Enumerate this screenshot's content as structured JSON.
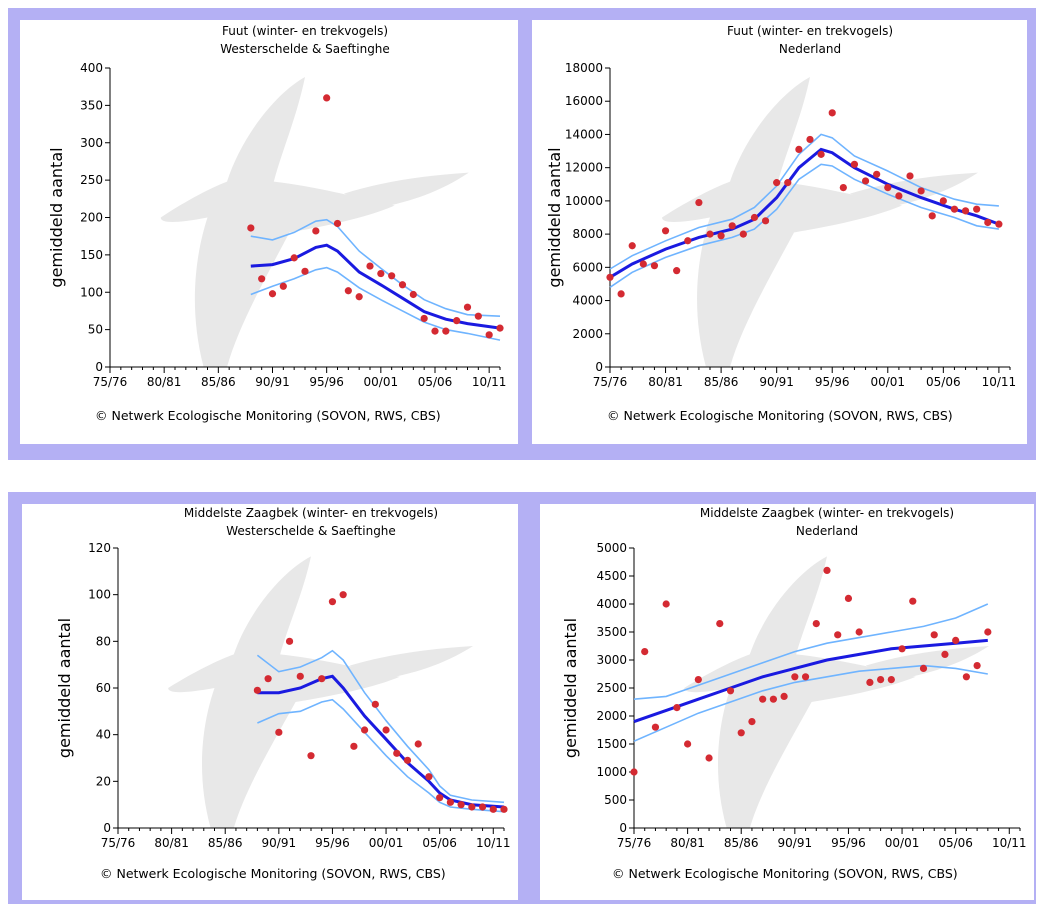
{
  "credit": "© Netwerk Ecologische Monitoring (SOVON, RWS, CBS)",
  "colors": {
    "band": "#b4b0f4",
    "trend": "#1a1ae0",
    "band_line": "#6fb4ff",
    "points": "#d42a32",
    "silhouette": "#e8e8e8"
  },
  "icons": [
    "bird-silhouette-icon"
  ],
  "chart_data": [
    {
      "type": "scatter",
      "title": "Fuut (winter- en trekvogels)",
      "subtitle": "Westerschelde & Saeftinghe",
      "ylabel": "gemiddeld aantal",
      "xlabel": "",
      "x_ticks": [
        "75/76",
        "80/81",
        "85/86",
        "90/91",
        "95/96",
        "00/01",
        "05/06",
        "10/11"
      ],
      "xlim": [
        1975,
        2011
      ],
      "ylim": [
        0,
        400
      ],
      "y_ticks": [
        "0",
        "50",
        "100",
        "150",
        "200",
        "250",
        "300",
        "350",
        "400"
      ],
      "points": [
        [
          1988,
          186
        ],
        [
          1989,
          118
        ],
        [
          1990,
          98
        ],
        [
          1991,
          108
        ],
        [
          1992,
          146
        ],
        [
          1993,
          128
        ],
        [
          1994,
          182
        ],
        [
          1995,
          360
        ],
        [
          1996,
          192
        ],
        [
          1997,
          102
        ],
        [
          1998,
          94
        ],
        [
          1999,
          135
        ],
        [
          2000,
          125
        ],
        [
          2001,
          122
        ],
        [
          2002,
          110
        ],
        [
          2003,
          97
        ],
        [
          2004,
          65
        ],
        [
          2005,
          48
        ],
        [
          2006,
          48
        ],
        [
          2007,
          62
        ],
        [
          2008,
          80
        ],
        [
          2009,
          68
        ],
        [
          2010,
          43
        ],
        [
          2011,
          52
        ]
      ],
      "trend": [
        [
          1988,
          135
        ],
        [
          1990,
          137
        ],
        [
          1992,
          145
        ],
        [
          1994,
          160
        ],
        [
          1995,
          163
        ],
        [
          1996,
          155
        ],
        [
          1998,
          127
        ],
        [
          2000,
          110
        ],
        [
          2002,
          92
        ],
        [
          2004,
          74
        ],
        [
          2006,
          64
        ],
        [
          2008,
          58
        ],
        [
          2011,
          52
        ]
      ],
      "upper": [
        [
          1988,
          175
        ],
        [
          1990,
          170
        ],
        [
          1992,
          180
        ],
        [
          1994,
          195
        ],
        [
          1995,
          197
        ],
        [
          1996,
          188
        ],
        [
          1998,
          155
        ],
        [
          2000,
          132
        ],
        [
          2002,
          110
        ],
        [
          2004,
          90
        ],
        [
          2006,
          78
        ],
        [
          2008,
          70
        ],
        [
          2011,
          68
        ]
      ],
      "lower": [
        [
          1988,
          97
        ],
        [
          1990,
          108
        ],
        [
          1992,
          118
        ],
        [
          1994,
          130
        ],
        [
          1995,
          133
        ],
        [
          1996,
          127
        ],
        [
          1998,
          106
        ],
        [
          2000,
          90
        ],
        [
          2002,
          75
        ],
        [
          2004,
          60
        ],
        [
          2006,
          50
        ],
        [
          2008,
          45
        ],
        [
          2011,
          36
        ]
      ]
    },
    {
      "type": "scatter",
      "title": "Fuut (winter- en trekvogels)",
      "subtitle": "Nederland",
      "ylabel": "gemiddeld aantal",
      "xlabel": "",
      "x_ticks": [
        "75/76",
        "80/81",
        "85/86",
        "90/91",
        "95/96",
        "00/01",
        "05/06",
        "10/11"
      ],
      "xlim": [
        1975,
        2011
      ],
      "ylim": [
        0,
        18000
      ],
      "y_ticks": [
        "0",
        "2000",
        "4000",
        "6000",
        "8000",
        "10000",
        "12000",
        "14000",
        "16000",
        "18000"
      ],
      "points": [
        [
          1975,
          5400
        ],
        [
          1976,
          4400
        ],
        [
          1977,
          7300
        ],
        [
          1978,
          6200
        ],
        [
          1979,
          6100
        ],
        [
          1980,
          8200
        ],
        [
          1981,
          5800
        ],
        [
          1982,
          7600
        ],
        [
          1983,
          9900
        ],
        [
          1984,
          8000
        ],
        [
          1985,
          7900
        ],
        [
          1986,
          8500
        ],
        [
          1987,
          8000
        ],
        [
          1988,
          9000
        ],
        [
          1989,
          8800
        ],
        [
          1990,
          11100
        ],
        [
          1991,
          11100
        ],
        [
          1992,
          13100
        ],
        [
          1993,
          13700
        ],
        [
          1994,
          12800
        ],
        [
          1995,
          15300
        ],
        [
          1996,
          10800
        ],
        [
          1997,
          12200
        ],
        [
          1998,
          11200
        ],
        [
          1999,
          11600
        ],
        [
          2000,
          10800
        ],
        [
          2001,
          10300
        ],
        [
          2002,
          11500
        ],
        [
          2003,
          10600
        ],
        [
          2004,
          9100
        ],
        [
          2005,
          10000
        ],
        [
          2006,
          9500
        ],
        [
          2007,
          9400
        ],
        [
          2008,
          9500
        ],
        [
          2009,
          8700
        ],
        [
          2010,
          8600
        ]
      ],
      "trend": [
        [
          1975,
          5400
        ],
        [
          1977,
          6200
        ],
        [
          1980,
          7100
        ],
        [
          1983,
          7800
        ],
        [
          1986,
          8300
        ],
        [
          1988,
          8900
        ],
        [
          1990,
          10200
        ],
        [
          1992,
          12000
        ],
        [
          1994,
          13100
        ],
        [
          1995,
          12900
        ],
        [
          1997,
          12000
        ],
        [
          2000,
          11000
        ],
        [
          2003,
          10200
        ],
        [
          2006,
          9500
        ],
        [
          2008,
          9100
        ],
        [
          2010,
          8600
        ]
      ],
      "upper": [
        [
          1975,
          5900
        ],
        [
          1977,
          6700
        ],
        [
          1980,
          7600
        ],
        [
          1983,
          8400
        ],
        [
          1986,
          8900
        ],
        [
          1988,
          9600
        ],
        [
          1990,
          10900
        ],
        [
          1992,
          12800
        ],
        [
          1994,
          14000
        ],
        [
          1995,
          13800
        ],
        [
          1997,
          12700
        ],
        [
          2000,
          11800
        ],
        [
          2003,
          10800
        ],
        [
          2006,
          10100
        ],
        [
          2008,
          9800
        ],
        [
          2010,
          9700
        ]
      ],
      "lower": [
        [
          1975,
          4800
        ],
        [
          1977,
          5700
        ],
        [
          1980,
          6600
        ],
        [
          1983,
          7300
        ],
        [
          1986,
          7800
        ],
        [
          1988,
          8300
        ],
        [
          1990,
          9500
        ],
        [
          1992,
          11300
        ],
        [
          1994,
          12200
        ],
        [
          1995,
          12100
        ],
        [
          1997,
          11300
        ],
        [
          2000,
          10400
        ],
        [
          2003,
          9600
        ],
        [
          2006,
          9000
        ],
        [
          2008,
          8500
        ],
        [
          2010,
          8300
        ]
      ]
    },
    {
      "type": "scatter",
      "title": "Middelste Zaagbek (winter- en trekvogels)",
      "subtitle": "Westerschelde & Saeftinghe",
      "ylabel": "gemiddeld aantal",
      "xlabel": "",
      "x_ticks": [
        "75/76",
        "80/81",
        "85/86",
        "90/91",
        "95/96",
        "00/01",
        "05/06",
        "10/11"
      ],
      "xlim": [
        1975,
        2011
      ],
      "ylim": [
        0,
        120
      ],
      "y_ticks": [
        "0",
        "20",
        "40",
        "60",
        "80",
        "100",
        "120"
      ],
      "points": [
        [
          1988,
          59
        ],
        [
          1989,
          64
        ],
        [
          1990,
          41
        ],
        [
          1991,
          80
        ],
        [
          1992,
          65
        ],
        [
          1993,
          31
        ],
        [
          1994,
          64
        ],
        [
          1995,
          97
        ],
        [
          1996,
          100
        ],
        [
          1997,
          35
        ],
        [
          1998,
          42
        ],
        [
          1999,
          53
        ],
        [
          2000,
          42
        ],
        [
          2001,
          32
        ],
        [
          2002,
          29
        ],
        [
          2003,
          36
        ],
        [
          2004,
          22
        ],
        [
          2005,
          13
        ],
        [
          2006,
          11
        ],
        [
          2007,
          10
        ],
        [
          2008,
          9
        ],
        [
          2009,
          9
        ],
        [
          2010,
          8
        ],
        [
          2011,
          8
        ]
      ],
      "trend": [
        [
          1988,
          58
        ],
        [
          1990,
          58
        ],
        [
          1992,
          60
        ],
        [
          1994,
          64
        ],
        [
          1995,
          65
        ],
        [
          1996,
          60
        ],
        [
          1998,
          48
        ],
        [
          2000,
          38
        ],
        [
          2002,
          28
        ],
        [
          2004,
          20
        ],
        [
          2005,
          15
        ],
        [
          2006,
          12
        ],
        [
          2008,
          10
        ],
        [
          2011,
          9
        ]
      ],
      "upper": [
        [
          1988,
          74
        ],
        [
          1990,
          67
        ],
        [
          1992,
          69
        ],
        [
          1994,
          73
        ],
        [
          1995,
          76
        ],
        [
          1996,
          72
        ],
        [
          1998,
          58
        ],
        [
          2000,
          46
        ],
        [
          2002,
          35
        ],
        [
          2004,
          25
        ],
        [
          2005,
          18
        ],
        [
          2006,
          14
        ],
        [
          2008,
          12
        ],
        [
          2011,
          11
        ]
      ],
      "lower": [
        [
          1988,
          45
        ],
        [
          1990,
          49
        ],
        [
          1992,
          50
        ],
        [
          1994,
          54
        ],
        [
          1995,
          55
        ],
        [
          1996,
          51
        ],
        [
          1998,
          41
        ],
        [
          2000,
          31
        ],
        [
          2002,
          22
        ],
        [
          2004,
          15
        ],
        [
          2005,
          11
        ],
        [
          2006,
          9
        ],
        [
          2008,
          8
        ],
        [
          2011,
          7
        ]
      ]
    },
    {
      "type": "scatter",
      "title": "Middelste Zaagbek (winter- en trekvogels)",
      "subtitle": "Nederland",
      "ylabel": "gemiddeld aantal",
      "xlabel": "",
      "x_ticks": [
        "75/76",
        "80/81",
        "85/86",
        "90/91",
        "95/96",
        "00/01",
        "05/06",
        "10/11"
      ],
      "xlim": [
        1975,
        2011
      ],
      "ylim": [
        0,
        5000
      ],
      "y_ticks": [
        "0",
        "500",
        "1000",
        "1500",
        "2000",
        "2500",
        "3000",
        "3500",
        "4000",
        "4500",
        "5000"
      ],
      "points": [
        [
          1975,
          1000
        ],
        [
          1976,
          3150
        ],
        [
          1977,
          1800
        ],
        [
          1978,
          4000
        ],
        [
          1979,
          2150
        ],
        [
          1980,
          1500
        ],
        [
          1981,
          2650
        ],
        [
          1982,
          1250
        ],
        [
          1983,
          3650
        ],
        [
          1984,
          2450
        ],
        [
          1985,
          1700
        ],
        [
          1986,
          1900
        ],
        [
          1987,
          2300
        ],
        [
          1988,
          2300
        ],
        [
          1989,
          2350
        ],
        [
          1990,
          2700
        ],
        [
          1991,
          2700
        ],
        [
          1992,
          3650
        ],
        [
          1993,
          4600
        ],
        [
          1994,
          3450
        ],
        [
          1995,
          4100
        ],
        [
          1996,
          3500
        ],
        [
          1997,
          2600
        ],
        [
          1998,
          2650
        ],
        [
          1999,
          2650
        ],
        [
          2000,
          3200
        ],
        [
          2001,
          4050
        ],
        [
          2002,
          2850
        ],
        [
          2003,
          3450
        ],
        [
          2004,
          3100
        ],
        [
          2005,
          3350
        ],
        [
          2006,
          2700
        ],
        [
          2007,
          2900
        ],
        [
          2008,
          3500
        ]
      ],
      "trend": [
        [
          1975,
          1900
        ],
        [
          1978,
          2100
        ],
        [
          1981,
          2300
        ],
        [
          1984,
          2500
        ],
        [
          1987,
          2700
        ],
        [
          1990,
          2850
        ],
        [
          1993,
          3000
        ],
        [
          1996,
          3100
        ],
        [
          1999,
          3200
        ],
        [
          2002,
          3250
        ],
        [
          2005,
          3300
        ],
        [
          2008,
          3350
        ]
      ],
      "upper": [
        [
          1975,
          2300
        ],
        [
          1978,
          2350
        ],
        [
          1981,
          2550
        ],
        [
          1984,
          2750
        ],
        [
          1987,
          2950
        ],
        [
          1990,
          3150
        ],
        [
          1993,
          3300
        ],
        [
          1996,
          3400
        ],
        [
          1999,
          3500
        ],
        [
          2002,
          3600
        ],
        [
          2005,
          3750
        ],
        [
          2008,
          4000
        ]
      ],
      "lower": [
        [
          1975,
          1550
        ],
        [
          1978,
          1800
        ],
        [
          1981,
          2050
        ],
        [
          1984,
          2250
        ],
        [
          1987,
          2450
        ],
        [
          1990,
          2600
        ],
        [
          1993,
          2700
        ],
        [
          1996,
          2800
        ],
        [
          1999,
          2850
        ],
        [
          2002,
          2900
        ],
        [
          2005,
          2850
        ],
        [
          2008,
          2750
        ]
      ]
    }
  ]
}
